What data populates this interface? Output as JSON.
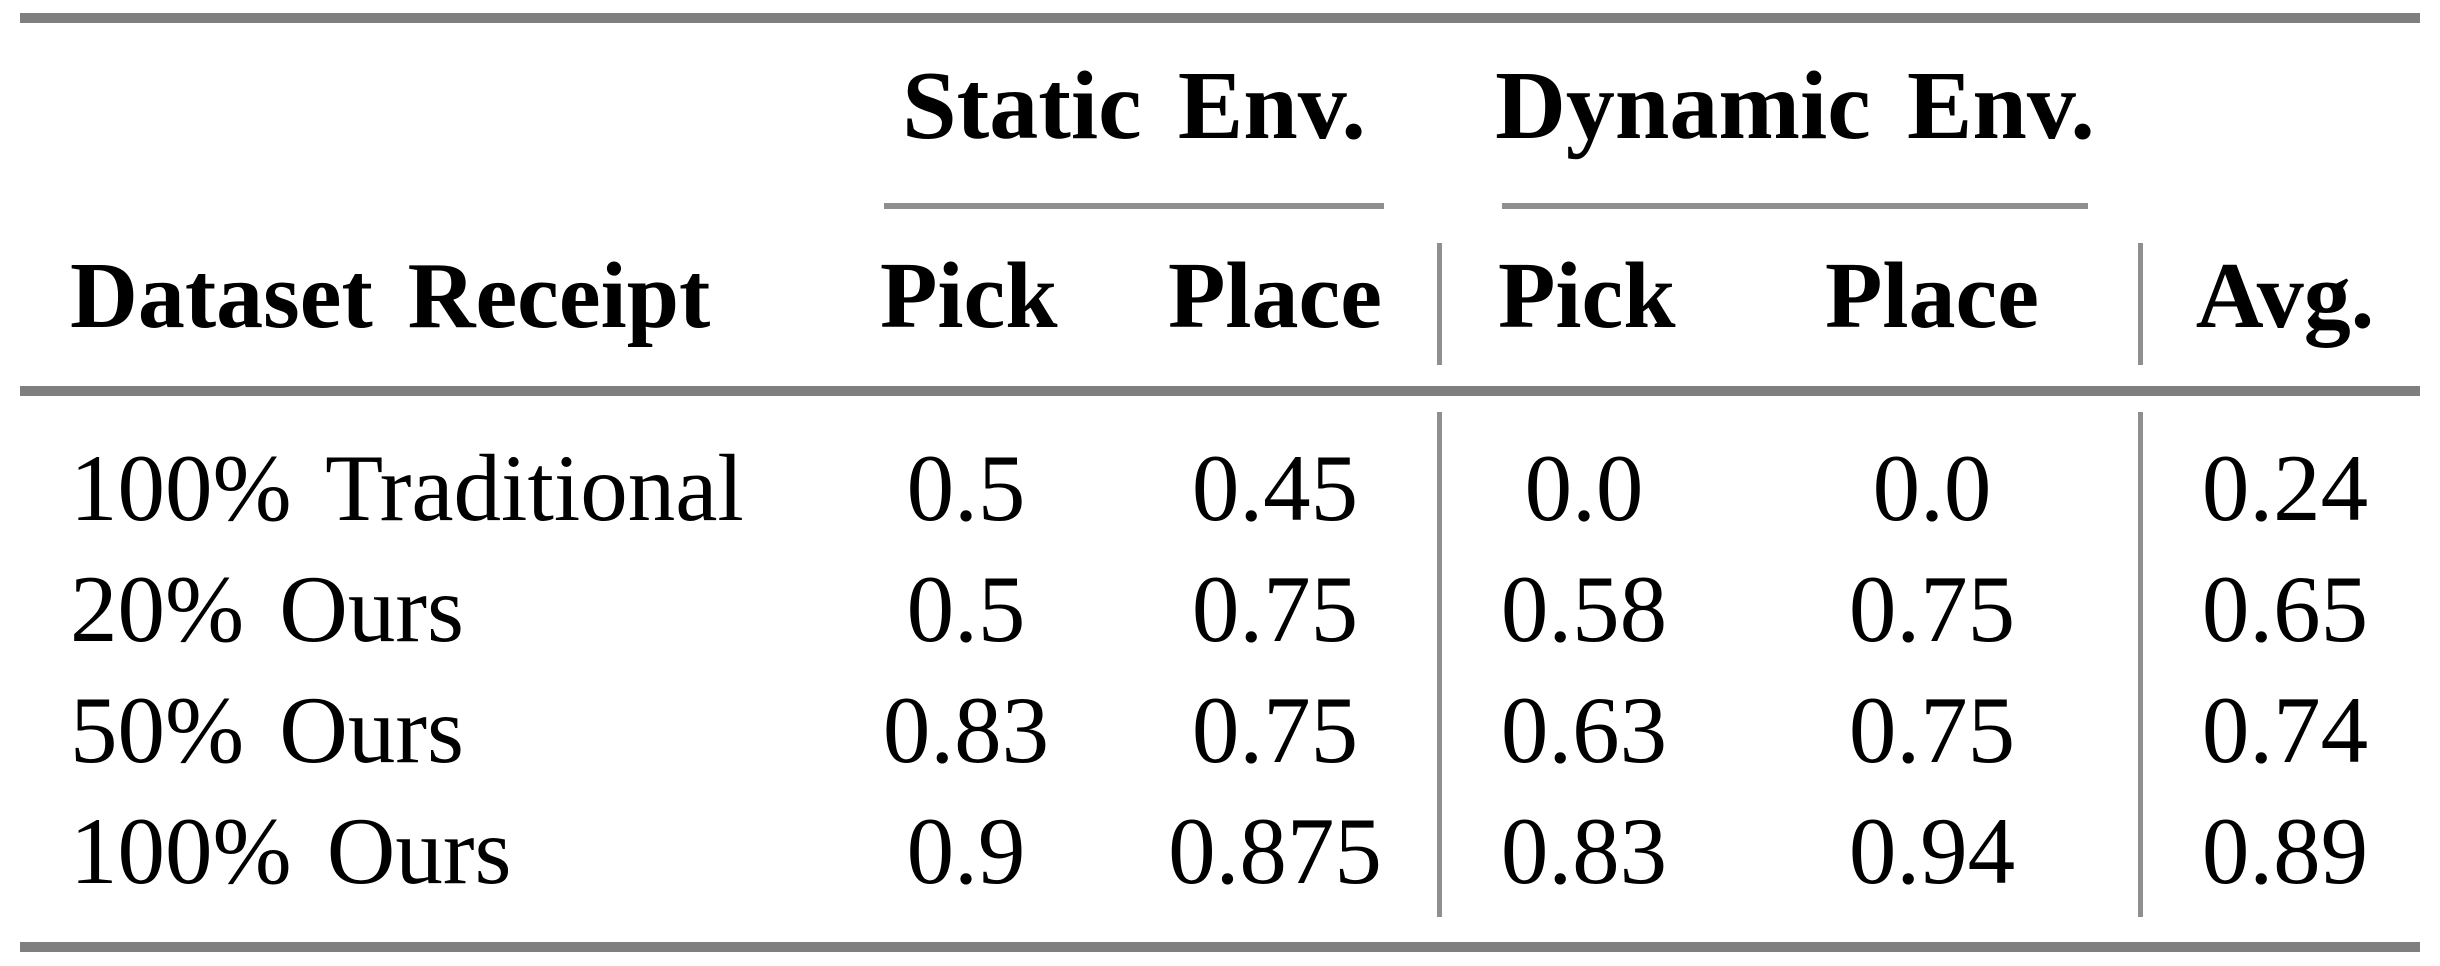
{
  "colors": {
    "rule_thick": "#7f7f7f",
    "rule_thin": "#8f8f8f",
    "text": "#000000",
    "background": "#ffffff"
  },
  "table": {
    "groups": [
      {
        "label": "Static Env."
      },
      {
        "label": "Dynamic Env."
      }
    ],
    "headers": {
      "dataset": "Dataset Receipt",
      "cols": [
        "Pick",
        "Place",
        "Pick",
        "Place",
        "Avg."
      ]
    },
    "rows": [
      {
        "label": "100% Traditional",
        "values": [
          "0.5",
          "0.45",
          "0.0",
          "0.0",
          "0.24"
        ]
      },
      {
        "label": "20% Ours",
        "values": [
          "0.5",
          "0.75",
          "0.58",
          "0.75",
          "0.65"
        ]
      },
      {
        "label": "50% Ours",
        "values": [
          "0.83",
          "0.75",
          "0.63",
          "0.75",
          "0.74"
        ]
      },
      {
        "label": "100% Ours",
        "values": [
          "0.9",
          "0.875",
          "0.83",
          "0.94",
          "0.89"
        ]
      }
    ]
  },
  "chart_data": {
    "type": "table",
    "columns": [
      "Dataset Receipt",
      "Static Env. Pick",
      "Static Env. Place",
      "Dynamic Env. Pick",
      "Dynamic Env. Place",
      "Avg."
    ],
    "rows": [
      [
        "100% Traditional",
        0.5,
        0.45,
        0.0,
        0.0,
        0.24
      ],
      [
        "20% Ours",
        0.5,
        0.75,
        0.58,
        0.75,
        0.65
      ],
      [
        "50% Ours",
        0.83,
        0.75,
        0.63,
        0.75,
        0.74
      ],
      [
        "100% Ours",
        0.9,
        0.875,
        0.83,
        0.94,
        0.89
      ]
    ]
  }
}
